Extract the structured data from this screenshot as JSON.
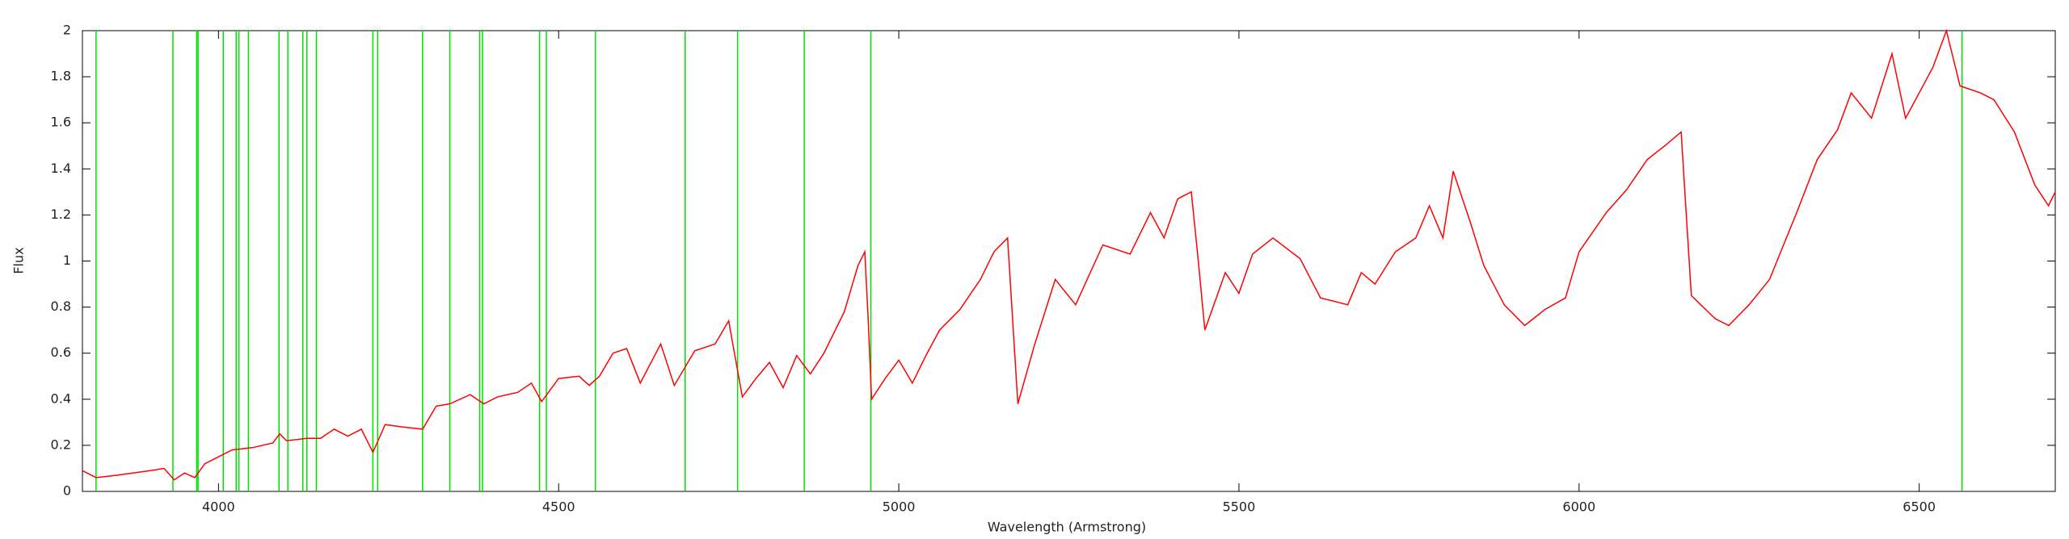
{
  "chart_data": {
    "type": "line",
    "x_label": "Wavelength (Armstrong)",
    "y_label": "Flux",
    "xlim": [
      3800,
      6700
    ],
    "ylim": [
      0,
      2
    ],
    "xticks": [
      4000,
      4500,
      5000,
      5500,
      6000,
      6500
    ],
    "yticks": [
      0,
      0.2,
      0.4,
      0.6,
      0.8,
      1,
      1.2,
      1.4,
      1.6,
      1.8,
      2
    ],
    "x": [
      3800,
      3820,
      3850,
      3900,
      3920,
      3935,
      3950,
      3965,
      3980,
      4000,
      4020,
      4050,
      4080,
      4090,
      4100,
      4130,
      4150,
      4170,
      4190,
      4210,
      4227,
      4245,
      4270,
      4300,
      4320,
      4340,
      4370,
      4390,
      4410,
      4440,
      4460,
      4475,
      4500,
      4530,
      4545,
      4560,
      4580,
      4600,
      4620,
      4650,
      4670,
      4700,
      4730,
      4750,
      4770,
      4790,
      4810,
      4830,
      4850,
      4870,
      4890,
      4920,
      4940,
      4950,
      4955,
      4960,
      4980,
      5000,
      5020,
      5040,
      5060,
      5090,
      5120,
      5140,
      5160,
      5175,
      5200,
      5230,
      5260,
      5300,
      5340,
      5370,
      5390,
      5410,
      5430,
      5440,
      5450,
      5480,
      5500,
      5520,
      5550,
      5590,
      5620,
      5660,
      5680,
      5700,
      5730,
      5760,
      5780,
      5800,
      5815,
      5840,
      5860,
      5890,
      5920,
      5950,
      5980,
      6000,
      6040,
      6070,
      6100,
      6130,
      6150,
      6165,
      6200,
      6220,
      6250,
      6280,
      6320,
      6350,
      6380,
      6400,
      6430,
      6460,
      6480,
      6520,
      6540,
      6560,
      6590,
      6610,
      6640,
      6670,
      6690,
      6700
    ],
    "series": [
      {
        "color": "#ff0000",
        "values": [
          0.09,
          0.06,
          0.07,
          0.09,
          0.1,
          0.05,
          0.08,
          0.06,
          0.12,
          0.15,
          0.18,
          0.19,
          0.21,
          0.25,
          0.22,
          0.23,
          0.23,
          0.27,
          0.24,
          0.27,
          0.17,
          0.29,
          0.28,
          0.27,
          0.37,
          0.38,
          0.42,
          0.38,
          0.41,
          0.43,
          0.47,
          0.39,
          0.49,
          0.5,
          0.46,
          0.5,
          0.6,
          0.62,
          0.47,
          0.64,
          0.46,
          0.61,
          0.64,
          0.74,
          0.41,
          0.49,
          0.56,
          0.45,
          0.59,
          0.51,
          0.6,
          0.78,
          0.98,
          1.04,
          0.75,
          0.4,
          0.49,
          0.57,
          0.47,
          0.59,
          0.7,
          0.79,
          0.92,
          1.04,
          1.1,
          0.38,
          0.64,
          0.92,
          0.81,
          1.07,
          1.03,
          1.21,
          1.1,
          1.27,
          1.3,
          1.01,
          0.7,
          0.95,
          0.86,
          1.03,
          1.1,
          1.01,
          0.84,
          0.81,
          0.95,
          0.9,
          1.04,
          1.1,
          1.24,
          1.1,
          1.39,
          1.17,
          0.98,
          0.81,
          0.72,
          0.79,
          0.84,
          1.04,
          1.21,
          1.31,
          1.44,
          1.51,
          1.56,
          0.85,
          0.75,
          0.72,
          0.81,
          0.92,
          1.21,
          1.44,
          1.57,
          1.73,
          1.62,
          1.9,
          1.62,
          1.84,
          2.0,
          1.76,
          1.73,
          1.7,
          1.56,
          1.33,
          1.24,
          1.3
        ]
      }
    ],
    "vlines": {
      "color": "#00e000",
      "x": [
        3820,
        3933,
        3968,
        3970,
        4007,
        4026,
        4030,
        4044,
        4089,
        4102,
        4124,
        4130,
        4144,
        4227,
        4234,
        4300,
        4340,
        4384,
        4388,
        4472,
        4482,
        4554,
        4686,
        4763,
        4861,
        4959,
        6563
      ]
    }
  }
}
